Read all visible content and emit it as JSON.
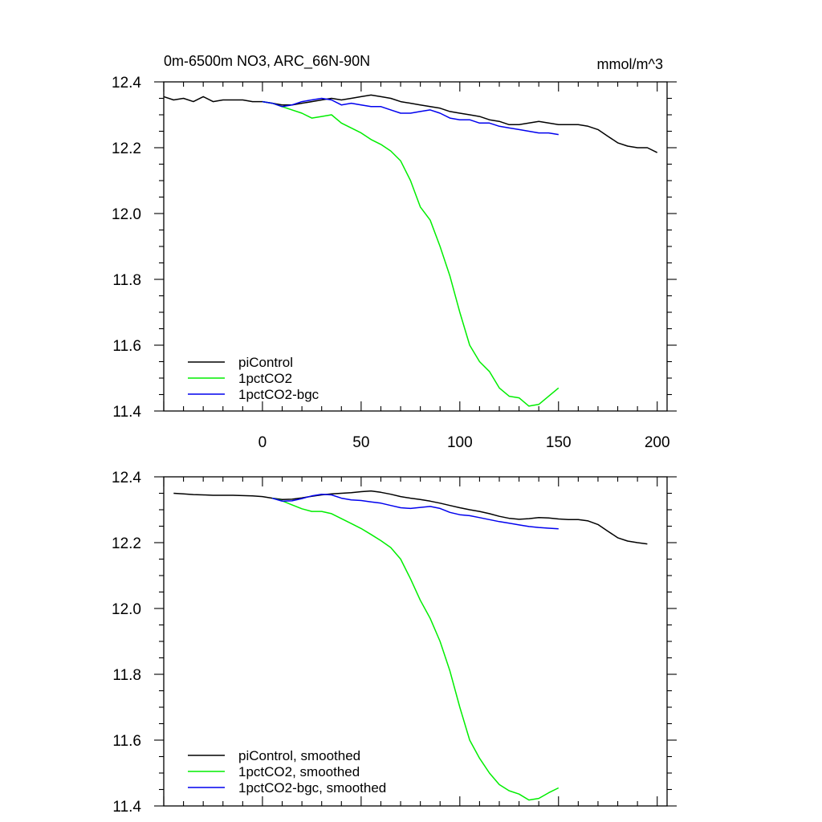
{
  "chart_data": [
    {
      "type": "line",
      "title": "0m-6500m NO3, ARC_66N-90N",
      "units": "mmol/m^3",
      "xlim": [
        -50,
        205
      ],
      "ylim": [
        11.4,
        12.4
      ],
      "x_tick_labels": [
        "0",
        "50",
        "100",
        "150",
        "200"
      ],
      "y_tick_labels": [
        "12.4",
        "12.2",
        "12.0",
        "11.8",
        "11.6",
        "11.4"
      ],
      "legend_position": "bottom-left",
      "series": [
        {
          "name": "piControl",
          "color": "#000000",
          "x": [
            -50,
            -45,
            -40,
            -35,
            -30,
            -25,
            -20,
            -15,
            -10,
            -5,
            0,
            5,
            10,
            15,
            20,
            25,
            30,
            35,
            40,
            45,
            50,
            55,
            60,
            65,
            70,
            75,
            80,
            85,
            90,
            95,
            100,
            105,
            110,
            115,
            120,
            125,
            130,
            135,
            140,
            145,
            150,
            155,
            160,
            165,
            170,
            175,
            180,
            185,
            190,
            195,
            200
          ],
          "y": [
            12.355,
            12.345,
            12.35,
            12.34,
            12.355,
            12.34,
            12.345,
            12.345,
            12.345,
            12.34,
            12.34,
            12.335,
            12.33,
            12.33,
            12.335,
            12.34,
            12.345,
            12.35,
            12.345,
            12.35,
            12.355,
            12.36,
            12.355,
            12.35,
            12.34,
            12.335,
            12.33,
            12.325,
            12.32,
            12.31,
            12.305,
            12.3,
            12.295,
            12.285,
            12.28,
            12.27,
            12.27,
            12.275,
            12.28,
            12.275,
            12.27,
            12.27,
            12.27,
            12.265,
            12.255,
            12.235,
            12.215,
            12.205,
            12.2,
            12.2,
            12.185
          ]
        },
        {
          "name": "1pctCO2",
          "color": "#00ee00",
          "x": [
            0,
            5,
            10,
            15,
            20,
            25,
            30,
            35,
            40,
            45,
            50,
            55,
            60,
            65,
            70,
            75,
            80,
            85,
            90,
            95,
            100,
            105,
            110,
            115,
            120,
            125,
            130,
            135,
            140,
            145,
            150
          ],
          "y": [
            12.34,
            12.335,
            12.325,
            12.315,
            12.305,
            12.29,
            12.295,
            12.3,
            12.275,
            12.26,
            12.245,
            12.225,
            12.21,
            12.19,
            12.16,
            12.1,
            12.02,
            11.98,
            11.9,
            11.81,
            11.7,
            11.6,
            11.55,
            11.52,
            11.47,
            11.445,
            11.44,
            11.415,
            11.42,
            11.445,
            11.47
          ]
        },
        {
          "name": "1pctCO2-bgc",
          "color": "#0000ee",
          "x": [
            0,
            5,
            10,
            15,
            20,
            25,
            30,
            35,
            40,
            45,
            50,
            55,
            60,
            65,
            70,
            75,
            80,
            85,
            90,
            95,
            100,
            105,
            110,
            115,
            120,
            125,
            130,
            135,
            140,
            145,
            150
          ],
          "y": [
            12.34,
            12.335,
            12.325,
            12.33,
            12.34,
            12.345,
            12.35,
            12.345,
            12.33,
            12.335,
            12.33,
            12.325,
            12.325,
            12.315,
            12.305,
            12.305,
            12.31,
            12.315,
            12.305,
            12.29,
            12.285,
            12.285,
            12.275,
            12.275,
            12.265,
            12.26,
            12.255,
            12.25,
            12.245,
            12.245,
            12.24
          ]
        }
      ]
    },
    {
      "type": "line",
      "title": "",
      "xlim": [
        -50,
        205
      ],
      "ylim": [
        11.4,
        12.4
      ],
      "x_tick_labels": [],
      "y_tick_labels": [
        "12.4",
        "12.2",
        "12.0",
        "11.8",
        "11.6",
        "11.4"
      ],
      "legend_position": "bottom-left",
      "series": [
        {
          "name": "piControl, smoothed",
          "color": "#000000",
          "x": [
            -45,
            -40,
            -35,
            -30,
            -25,
            -20,
            -15,
            -10,
            -5,
            0,
            5,
            10,
            15,
            20,
            25,
            30,
            35,
            40,
            45,
            50,
            55,
            60,
            65,
            70,
            75,
            80,
            85,
            90,
            95,
            100,
            105,
            110,
            115,
            120,
            125,
            130,
            135,
            140,
            145,
            150,
            155,
            160,
            165,
            170,
            175,
            180,
            185,
            190,
            195
          ],
          "y": [
            12.35,
            12.348,
            12.346,
            12.345,
            12.344,
            12.344,
            12.344,
            12.343,
            12.342,
            12.34,
            12.335,
            12.331,
            12.332,
            12.336,
            12.341,
            12.345,
            12.348,
            12.35,
            12.352,
            12.355,
            12.357,
            12.353,
            12.347,
            12.34,
            12.335,
            12.331,
            12.326,
            12.32,
            12.313,
            12.306,
            12.3,
            12.295,
            12.288,
            12.28,
            12.274,
            12.271,
            12.273,
            12.276,
            12.275,
            12.272,
            12.27,
            12.27,
            12.266,
            12.255,
            12.235,
            12.215,
            12.205,
            12.2,
            12.196
          ]
        },
        {
          "name": "1pctCO2, smoothed",
          "color": "#00ee00",
          "x": [
            5,
            10,
            15,
            20,
            25,
            30,
            35,
            40,
            45,
            50,
            55,
            60,
            65,
            70,
            75,
            80,
            85,
            90,
            95,
            100,
            105,
            110,
            115,
            120,
            125,
            130,
            135,
            140,
            145,
            150
          ],
          "y": [
            12.335,
            12.327,
            12.315,
            12.303,
            12.295,
            12.295,
            12.288,
            12.273,
            12.258,
            12.243,
            12.225,
            12.206,
            12.185,
            12.15,
            12.09,
            12.025,
            11.97,
            11.9,
            11.81,
            11.7,
            11.6,
            11.545,
            11.5,
            11.465,
            11.446,
            11.436,
            11.418,
            11.423,
            11.44,
            11.455
          ]
        },
        {
          "name": "1pctCO2-bgc, smoothed",
          "color": "#0000ee",
          "x": [
            5,
            10,
            15,
            20,
            25,
            30,
            35,
            40,
            45,
            50,
            55,
            60,
            65,
            70,
            75,
            80,
            85,
            90,
            95,
            100,
            105,
            110,
            115,
            120,
            125,
            130,
            135,
            140,
            145,
            150
          ],
          "y": [
            12.335,
            12.326,
            12.327,
            12.334,
            12.342,
            12.347,
            12.345,
            12.335,
            12.33,
            12.328,
            12.324,
            12.32,
            12.313,
            12.306,
            12.304,
            12.307,
            12.31,
            12.304,
            12.292,
            12.285,
            12.282,
            12.276,
            12.27,
            12.264,
            12.259,
            12.254,
            12.249,
            12.246,
            12.244,
            12.242
          ]
        }
      ]
    }
  ]
}
